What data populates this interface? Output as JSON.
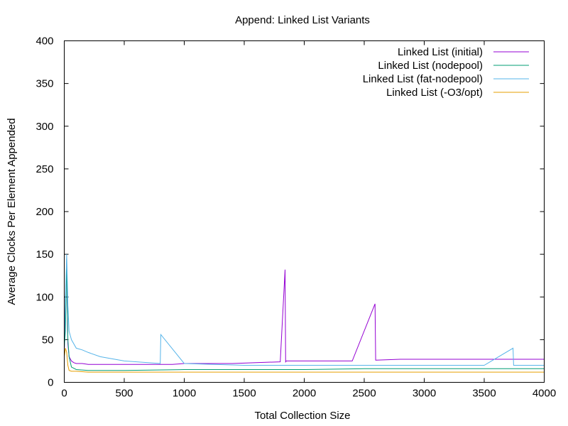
{
  "chart_data": {
    "type": "line",
    "title": "Append:  Linked List Variants",
    "xlabel": "Total Collection Size",
    "ylabel": "Average Clocks Per Element Appended",
    "xlim": [
      0,
      4000
    ],
    "ylim": [
      0,
      400
    ],
    "xticks": [
      0,
      500,
      1000,
      1500,
      2000,
      2500,
      3000,
      3500,
      4000
    ],
    "yticks": [
      0,
      50,
      100,
      150,
      200,
      250,
      300,
      350,
      400
    ],
    "grid": false,
    "legend_position": "top-right",
    "series": [
      {
        "name": "Linked List (initial)",
        "color": "#9400d3",
        "x": [
          0,
          10,
          20,
          30,
          40,
          60,
          80,
          100,
          150,
          200,
          300,
          400,
          500,
          700,
          900,
          1000,
          1200,
          1400,
          1600,
          1800,
          1840,
          1845,
          1850,
          2000,
          2200,
          2400,
          2590,
          2595,
          2600,
          2800,
          3000,
          3200,
          3400,
          3600,
          3800,
          4000
        ],
        "y": [
          35,
          95,
          140,
          45,
          30,
          25,
          23,
          22,
          22,
          21,
          21,
          21,
          21,
          21,
          21,
          22,
          22,
          22,
          23,
          24,
          132,
          24,
          25,
          25,
          25,
          25,
          92,
          26,
          26,
          27,
          27,
          27,
          27,
          27,
          27,
          27
        ]
      },
      {
        "name": "Linked List (nodepool)",
        "color": "#009e73",
        "x": [
          0,
          10,
          20,
          30,
          40,
          60,
          100,
          200,
          500,
          1000,
          1500,
          2000,
          2500,
          3000,
          3500,
          4000
        ],
        "y": [
          40,
          60,
          145,
          50,
          30,
          18,
          15,
          14,
          14,
          15,
          15,
          15,
          16,
          16,
          16,
          16
        ]
      },
      {
        "name": "Linked List (fat-nodepool)",
        "color": "#56b4e9",
        "x": [
          0,
          10,
          20,
          30,
          40,
          60,
          100,
          150,
          200,
          300,
          500,
          800,
          805,
          1000,
          1500,
          2000,
          2500,
          3000,
          3500,
          3740,
          3745,
          4000
        ],
        "y": [
          40,
          100,
          150,
          90,
          60,
          50,
          40,
          38,
          35,
          30,
          25,
          22,
          56,
          22,
          20,
          20,
          20,
          20,
          20,
          40,
          20,
          20
        ]
      },
      {
        "name": "Linked List (-O3/opt)",
        "color": "#e69f00",
        "x": [
          0,
          10,
          20,
          30,
          40,
          60,
          100,
          200,
          500,
          1000,
          1500,
          2000,
          2500,
          3000,
          3500,
          4000
        ],
        "y": [
          30,
          40,
          35,
          20,
          14,
          13,
          13,
          12,
          12,
          12,
          12,
          12,
          12,
          12,
          12,
          12
        ]
      }
    ]
  }
}
